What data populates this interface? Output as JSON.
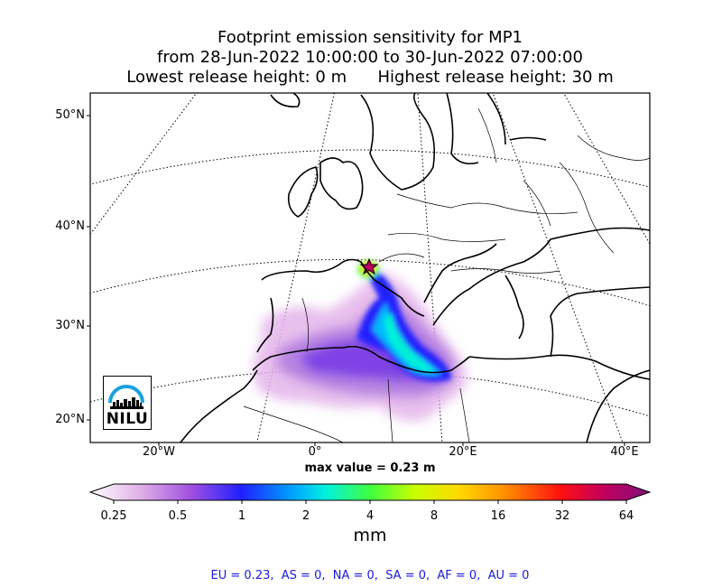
{
  "title": {
    "line1": "Footprint emission sensitivity for MP1",
    "line2": "from 28-Jun-2022 10:00:00 to 30-Jun-2022 07:00:00",
    "line3": "Lowest release height: 0 m      Highest release height: 30 m"
  },
  "axes": {
    "lat_labels": [
      "50°N",
      "40°N",
      "30°N",
      "20°N"
    ],
    "lon_labels": [
      "20°W",
      "0°",
      "20°E",
      "40°E"
    ]
  },
  "max_value_text": "max value = 0.23 m",
  "colorbar": {
    "ticks": [
      "0.25",
      "0.5",
      "1",
      "2",
      "4",
      "8",
      "16",
      "32",
      "64"
    ],
    "unit": "mm",
    "colors": [
      "#ffffff",
      "#dda0dd",
      "#8a2be2",
      "#0000ff",
      "#00bfff",
      "#00ffe0",
      "#40ff40",
      "#c0ff00",
      "#ffd700",
      "#ff8c00",
      "#ff2000",
      "#d00060",
      "#800080"
    ]
  },
  "logo": {
    "text": "NILU"
  },
  "footer": "EU = 0.23,  AS = 0,  NA = 0,  SA = 0,  AF = 0,  AU = 0"
}
